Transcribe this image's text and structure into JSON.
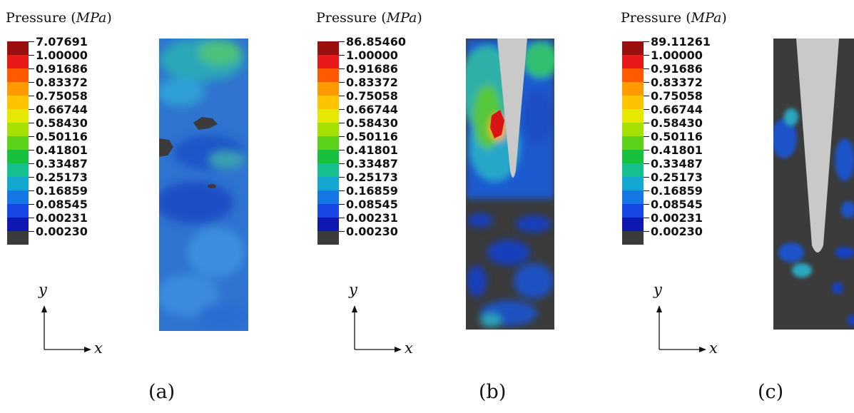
{
  "legend_colors": [
    "#9b0e0e",
    "#e81818",
    "#ff5a00",
    "#ff9a00",
    "#ffc400",
    "#e5e800",
    "#a4e000",
    "#5cd119",
    "#18c040",
    "#15bf8e",
    "#14a8d1",
    "#1577e6",
    "#1746e6",
    "#0e17b0",
    "#3b3b3b"
  ],
  "panels": [
    {
      "title_prefix": "Pressure (",
      "title_unit": "MPa",
      "title_suffix": ")",
      "legend_values": [
        "7.07691",
        "1.00000",
        "0.91686",
        "0.83372",
        "0.75058",
        "0.66744",
        "0.58430",
        "0.50116",
        "0.41801",
        "0.33487",
        "0.25173",
        "0.16859",
        "0.08545",
        "0.00231",
        "0.00230"
      ],
      "axis_x_label": "x",
      "axis_y_label": "y",
      "caption": "(a)"
    },
    {
      "title_prefix": "Pressure (",
      "title_unit": "MPa",
      "title_suffix": ")",
      "legend_values": [
        "86.85460",
        "1.00000",
        "0.91686",
        "0.83372",
        "0.75058",
        "0.66744",
        "0.58430",
        "0.50116",
        "0.41801",
        "0.33487",
        "0.25173",
        "0.16859",
        "0.08545",
        "0.00231",
        "0.00230"
      ],
      "axis_x_label": "x",
      "axis_y_label": "y",
      "caption": "(b)"
    },
    {
      "title_prefix": "Pressure (",
      "title_unit": "MPa",
      "title_suffix": ")",
      "legend_values": [
        "89.11261",
        "1.00000",
        "0.91686",
        "0.83372",
        "0.75058",
        "0.66744",
        "0.58430",
        "0.50116",
        "0.41801",
        "0.33487",
        "0.25173",
        "0.16859",
        "0.08545",
        "0.00231",
        "0.00230"
      ],
      "axis_x_label": "x",
      "axis_y_label": "y",
      "caption": "(c)"
    }
  ]
}
